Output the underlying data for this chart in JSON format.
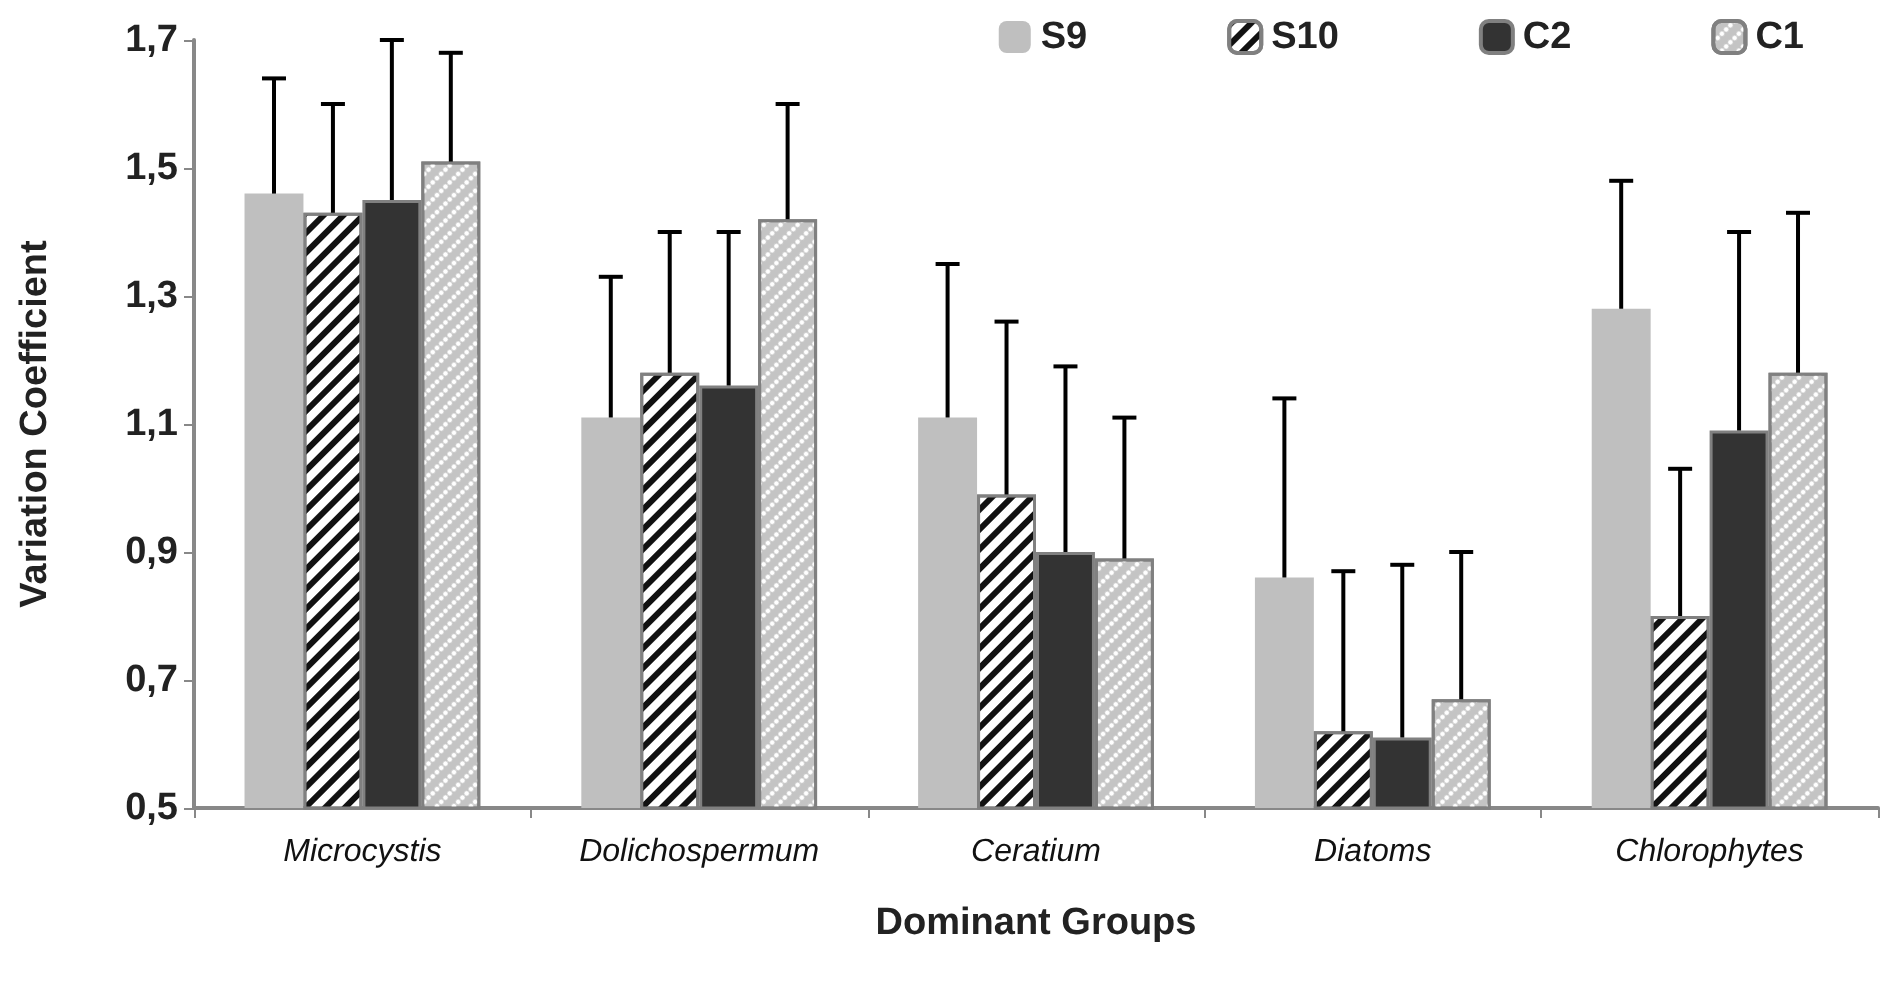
{
  "chart_data": {
    "type": "bar",
    "xlabel": "Dominant Groups",
    "ylabel": "Variation Coefficient",
    "categories": [
      "Microcystis",
      "Dolichospermum",
      "Ceratium",
      "Diatoms",
      "Chlorophytes"
    ],
    "series": [
      {
        "name": "S9",
        "color": "#bfbfbf",
        "values": [
          1.46,
          1.11,
          1.11,
          0.86,
          1.28
        ],
        "errors": [
          [
            1.46,
            1.64
          ],
          [
            1.11,
            1.33
          ],
          [
            1.11,
            1.35
          ],
          [
            0.86,
            1.14
          ],
          [
            1.28,
            1.48
          ]
        ]
      },
      {
        "name": "S10",
        "color": "#ffffff",
        "values": [
          1.43,
          1.18,
          0.99,
          0.62,
          0.8
        ],
        "errors": [
          [
            1.43,
            1.6
          ],
          [
            1.18,
            1.4
          ],
          [
            0.99,
            1.26
          ],
          [
            0.62,
            0.87
          ],
          [
            0.8,
            1.03
          ]
        ]
      },
      {
        "name": "C2",
        "color": "#333333",
        "values": [
          1.45,
          1.16,
          0.9,
          0.61,
          1.09
        ],
        "errors": [
          [
            1.45,
            1.7
          ],
          [
            1.16,
            1.4
          ],
          [
            0.9,
            1.19
          ],
          [
            0.61,
            0.88
          ],
          [
            1.09,
            1.4
          ]
        ]
      },
      {
        "name": "C1",
        "color": "#c4c4c4",
        "values": [
          1.51,
          1.42,
          0.89,
          0.67,
          1.18
        ],
        "errors": [
          [
            1.51,
            1.68
          ],
          [
            1.42,
            1.6
          ],
          [
            0.89,
            1.11
          ],
          [
            0.67,
            0.9
          ],
          [
            1.18,
            1.43
          ]
        ]
      }
    ],
    "ylim": [
      0.5,
      1.7
    ],
    "yticks": [
      {
        "value": 0.5,
        "label": "0,5"
      },
      {
        "value": 0.7,
        "label": "0,7"
      },
      {
        "value": 0.9,
        "label": "0,9"
      },
      {
        "value": 1.1,
        "label": "1,1"
      },
      {
        "value": 1.3,
        "label": "1,3"
      },
      {
        "value": 1.5,
        "label": "1,5"
      },
      {
        "value": 1.7,
        "label": "1,7"
      }
    ],
    "grid": false,
    "legend": "top right"
  }
}
